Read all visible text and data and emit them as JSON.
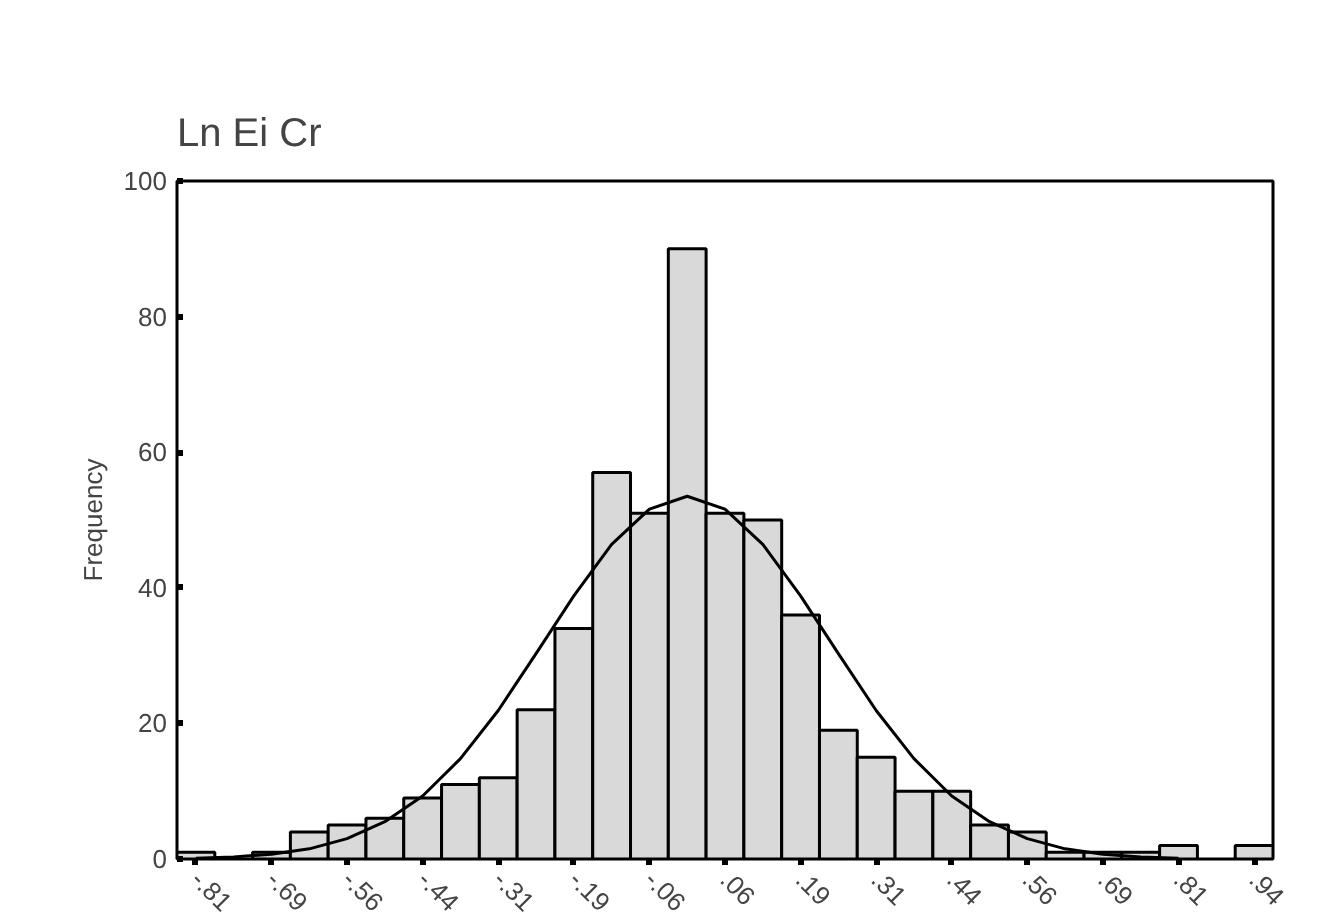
{
  "chart_data": {
    "type": "histogram",
    "title": "Ln Ei Cr",
    "ylabel": "Frequency",
    "bins": [
      -0.84375,
      -0.78125,
      -0.71875,
      -0.65625,
      -0.59375,
      -0.53125,
      -0.46875,
      -0.40625,
      -0.34375,
      -0.28125,
      -0.21875,
      -0.15625,
      -0.09375,
      -0.03125,
      0.03125,
      0.09375,
      0.15625,
      0.21875,
      0.28125,
      0.34375,
      0.40625,
      0.46875,
      0.53125,
      0.59375,
      0.65625,
      0.71875,
      0.78125,
      0.84375,
      0.90625,
      0.96875
    ],
    "values": [
      1,
      0,
      1,
      4,
      5,
      6,
      9,
      11,
      12,
      22,
      34,
      57,
      51,
      90,
      51,
      50,
      36,
      19,
      15,
      10,
      10,
      5,
      4,
      1,
      1,
      1,
      2,
      0,
      2
    ],
    "color": "#d9d9d9",
    "series": [
      {
        "type": "line",
        "color": "#000000",
        "x": [
          -0.8125,
          -0.75,
          -0.6875,
          -0.625,
          -0.5625,
          -0.5,
          -0.4375,
          -0.375,
          -0.3125,
          -0.25,
          -0.1875,
          -0.125,
          -0.0625,
          0,
          0.0625,
          0.125,
          0.1875,
          0.25,
          0.3125,
          0.375,
          0.4375,
          0.5,
          0.5625,
          0.625,
          0.6875,
          0.75,
          0.8125
        ],
        "values": [
          0.1,
          0.3,
          0.7,
          1.5,
          3.0,
          5.5,
          9.3,
          14.8,
          21.9,
          30.3,
          38.8,
          46.4,
          51.6,
          53.5,
          51.6,
          46.4,
          38.8,
          30.3,
          21.9,
          14.8,
          9.3,
          5.5,
          3.0,
          1.5,
          0.7,
          0.3,
          0.1
        ]
      }
    ],
    "xlim": [
      -0.84375,
      0.96875
    ],
    "ylim": [
      0,
      100
    ],
    "xticks": [
      {
        "value": -0.8125,
        "label": "-.81"
      },
      {
        "value": -0.6875,
        "label": "-.69"
      },
      {
        "value": -0.5625,
        "label": "-.56"
      },
      {
        "value": -0.4375,
        "label": "-.44"
      },
      {
        "value": -0.3125,
        "label": "-.31"
      },
      {
        "value": -0.1875,
        "label": "-.19"
      },
      {
        "value": -0.0625,
        "label": "-.06"
      },
      {
        "value": 0.0625,
        "label": ".06"
      },
      {
        "value": 0.1875,
        "label": ".19"
      },
      {
        "value": 0.3125,
        "label": ".31"
      },
      {
        "value": 0.4375,
        "label": ".44"
      },
      {
        "value": 0.5625,
        "label": ".56"
      },
      {
        "value": 0.6875,
        "label": ".69"
      },
      {
        "value": 0.8125,
        "label": ".81"
      },
      {
        "value": 0.9375,
        "label": ".94"
      }
    ],
    "yticks": [
      0,
      20,
      40,
      60,
      80,
      100
    ],
    "grid": false
  }
}
